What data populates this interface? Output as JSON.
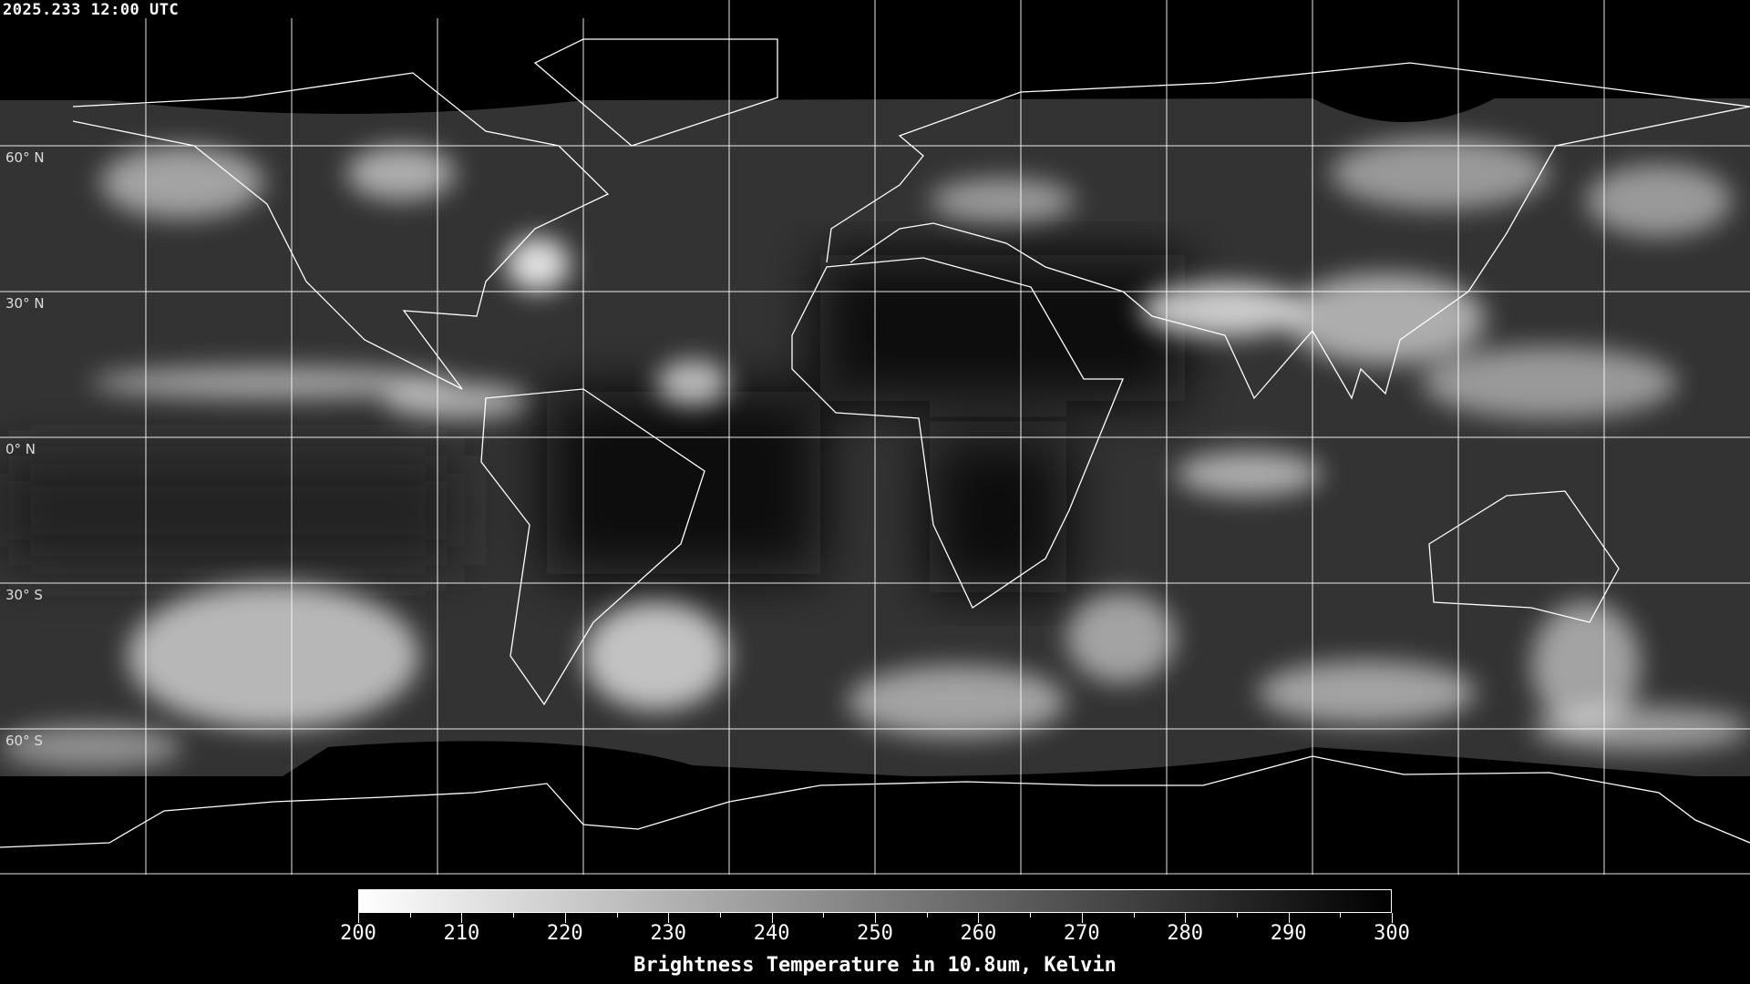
{
  "title": "2025.233 12:00 UTC",
  "map": {
    "projection": "equirectangular",
    "lon_range": [
      -180,
      180
    ],
    "lat_range": [
      -90,
      90
    ],
    "gridline_spacing_deg": 30,
    "gridline_color": "#ffffff",
    "coastline_color": "#ffffff",
    "lat_labels": [
      "60° N",
      "30° N",
      "0° N",
      "30° S",
      "60° S"
    ]
  },
  "colorbar": {
    "min": 200,
    "max": 300,
    "color_min": "#ffffff",
    "color_max": "#000000",
    "ticks": [
      "200",
      "210",
      "220",
      "230",
      "240",
      "250",
      "260",
      "270",
      "280",
      "290",
      "300"
    ],
    "label": "Brightness Temperature in 10.8um, Kelvin"
  }
}
